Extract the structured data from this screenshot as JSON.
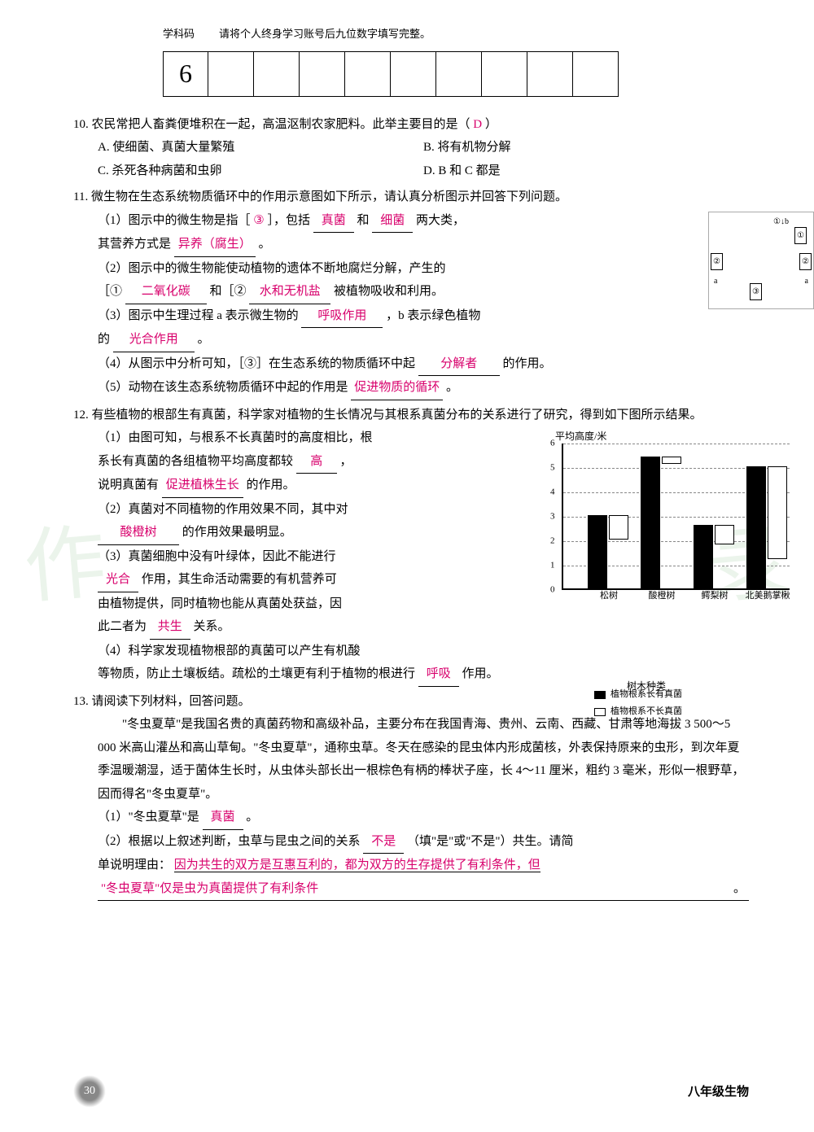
{
  "header": {
    "subject_label": "学科码",
    "account_label": "请将个人终身学习账号后九位数字填写完整。",
    "subject_code": "6"
  },
  "q10": {
    "num": "10.",
    "text": "农民常把人畜粪便堆积在一起，高温沤制农家肥料。此举主要目的是（",
    "close": "）",
    "answer": "D",
    "optA": "A. 使细菌、真菌大量繁殖",
    "optB": "B. 将有机物分解",
    "optC": "C. 杀死各种病菌和虫卵",
    "optD": "D. B 和 C 都是"
  },
  "q11": {
    "num": "11.",
    "text": "微生物在生态系统物质循环中的作用示意图如下所示，请认真分析图示并回答下列问题。",
    "s1_a": "（1）图示中的微生物是指［",
    "s1_ans1": "③",
    "s1_b": "］，包括",
    "s1_ans2": "真菌",
    "s1_c": "和",
    "s1_ans3": "细菌",
    "s1_d": "两大类，",
    "s1_e": "其营养方式是",
    "s1_ans4": "异养（腐生）",
    "s1_f": "。",
    "s2_a": "（2）图示中的微生物能使动植物的遗体不断地腐烂分解，产生的",
    "s2_b": "［①",
    "s2_ans1": "二氧化碳",
    "s2_c": "和［②",
    "s2_ans2": "水和无机盐",
    "s2_d": "被植物吸收和利用。",
    "s3_a": "（3）图示中生理过程 a 表示微生物的",
    "s3_ans1": "呼吸作用",
    "s3_b": "，b 表示绿色植物",
    "s3_c": "的",
    "s3_ans2": "光合作用",
    "s3_d": "。",
    "s4_a": "（4）从图示中分析可知，［③］在生态系统的物质循环中起",
    "s4_ans": "分解者",
    "s4_b": "的作用。",
    "s5_a": "（5）动物在该生态系统物质循环中起的作用是",
    "s5_ans": "促进物质的循环",
    "s5_b": "。"
  },
  "q12": {
    "num": "12.",
    "text": "有些植物的根部生有真菌，科学家对植物的生长情况与其根系真菌分布的关系进行了研究，得到如下图所示结果。",
    "s1_a": "（1）由图可知，与根系不长真菌时的高度相比，根",
    "s1_b": "系长有真菌的各组植物平均高度都较",
    "s1_ans1": "高",
    "s1_c": "，",
    "s1_d": "说明真菌有",
    "s1_ans2": "促进植株生长",
    "s1_e": "的作用。",
    "s2_a": "（2）真菌对不同植物的作用效果不同，其中对",
    "s2_ans": "酸橙树",
    "s2_b": "的作用效果最明显。",
    "s3_a": "（3）真菌细胞中没有叶绿体，因此不能进行",
    "s3_ans1": "光合",
    "s3_b": "作用，其生命活动需要的有机营养可",
    "s3_c": "由植物提供，同时植物也能从真菌处获益，因",
    "s3_d": "此二者为",
    "s3_ans2": "共生",
    "s3_e": "关系。",
    "s4_a": "（4）科学家发现植物根部的真菌可以产生有机酸",
    "s4_b": "等物质，防止土壤板结。疏松的土壤更有利于植物的根进行",
    "s4_ans": "呼吸",
    "s4_c": "作用。"
  },
  "q13": {
    "num": "13.",
    "text": "请阅读下列材料，回答问题。",
    "material": "\"冬虫夏草\"是我国名贵的真菌药物和高级补品，主要分布在我国青海、贵州、云南、西藏、甘肃等地海拔 3 500～5 000 米高山灌丛和高山草甸。\"冬虫夏草\"，通称虫草。冬天在感染的昆虫体内形成菌核，外表保持原来的虫形，到次年夏季温暖潮湿，适于菌体生长时，从虫体头部长出一根棕色有柄的棒状子座，长 4～11 厘米，粗约 3 毫米，形似一根野草，因而得名\"冬虫夏草\"。",
    "s1_a": "（1）\"冬虫夏草\"是",
    "s1_ans": "真菌",
    "s1_b": "。",
    "s2_a": "（2）根据以上叙述判断，虫草与昆虫之间的关系",
    "s2_ans1": "不是",
    "s2_b": "（填\"是\"或\"不是\"）共生。请简",
    "s2_c": "单说明理由：",
    "s2_ans2": "因为共生的双方是互惠互利的，都为双方的生存提供了有利条件，但",
    "s2_ans3": "\"冬虫夏草\"仅是虫为真菌提供了有利条件",
    "s2_d": "。"
  },
  "chart": {
    "ylabel": "平均高度/米",
    "y_max": 6,
    "y_ticks": [
      0,
      1,
      2,
      3,
      4,
      5,
      6
    ],
    "categories": [
      "松树",
      "酸橙树",
      "鳄梨树",
      "北美鹅掌楸"
    ],
    "series1_name": "植物根系长有真菌",
    "series2_name": "植物根系不长真菌",
    "series1": [
      3.0,
      5.4,
      2.6,
      5.0
    ],
    "series2": [
      1.0,
      0.3,
      0.8,
      3.8
    ],
    "xlabel": "树木种类",
    "bar_group_positions": [
      30,
      95,
      160,
      225
    ],
    "colors": {
      "filled": "#000000",
      "empty": "#ffffff",
      "border": "#000000"
    }
  },
  "footer": {
    "page": "30",
    "label": "八年级生物"
  }
}
